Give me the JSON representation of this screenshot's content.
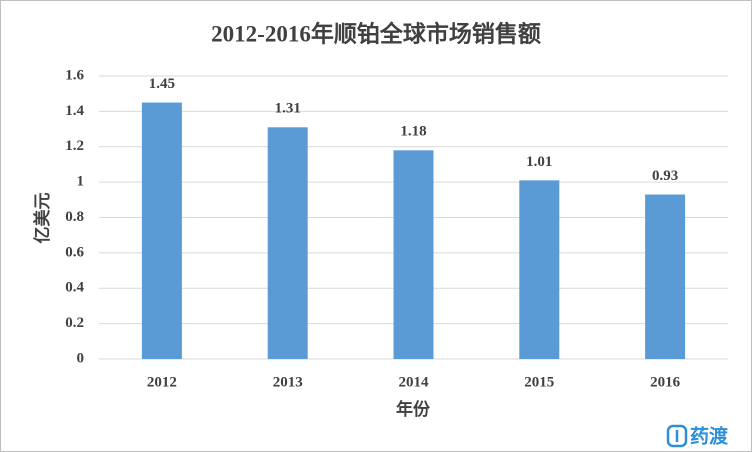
{
  "chart_data": {
    "type": "bar",
    "title": "2012-2016年顺铂全球市场销售额",
    "x_label": "年份",
    "y_label": "亿美元",
    "categories": [
      "2012",
      "2013",
      "2014",
      "2015",
      "2016"
    ],
    "values": [
      1.45,
      1.31,
      1.18,
      1.01,
      0.93
    ],
    "color": "#5b9bd5",
    "ylim": [
      0,
      1.6
    ],
    "yticks": [
      0,
      0.2,
      0.4,
      0.6,
      0.8,
      1,
      1.2,
      1.4,
      1.6
    ],
    "grid": true,
    "data_labels": true,
    "watermark": "药渡"
  }
}
